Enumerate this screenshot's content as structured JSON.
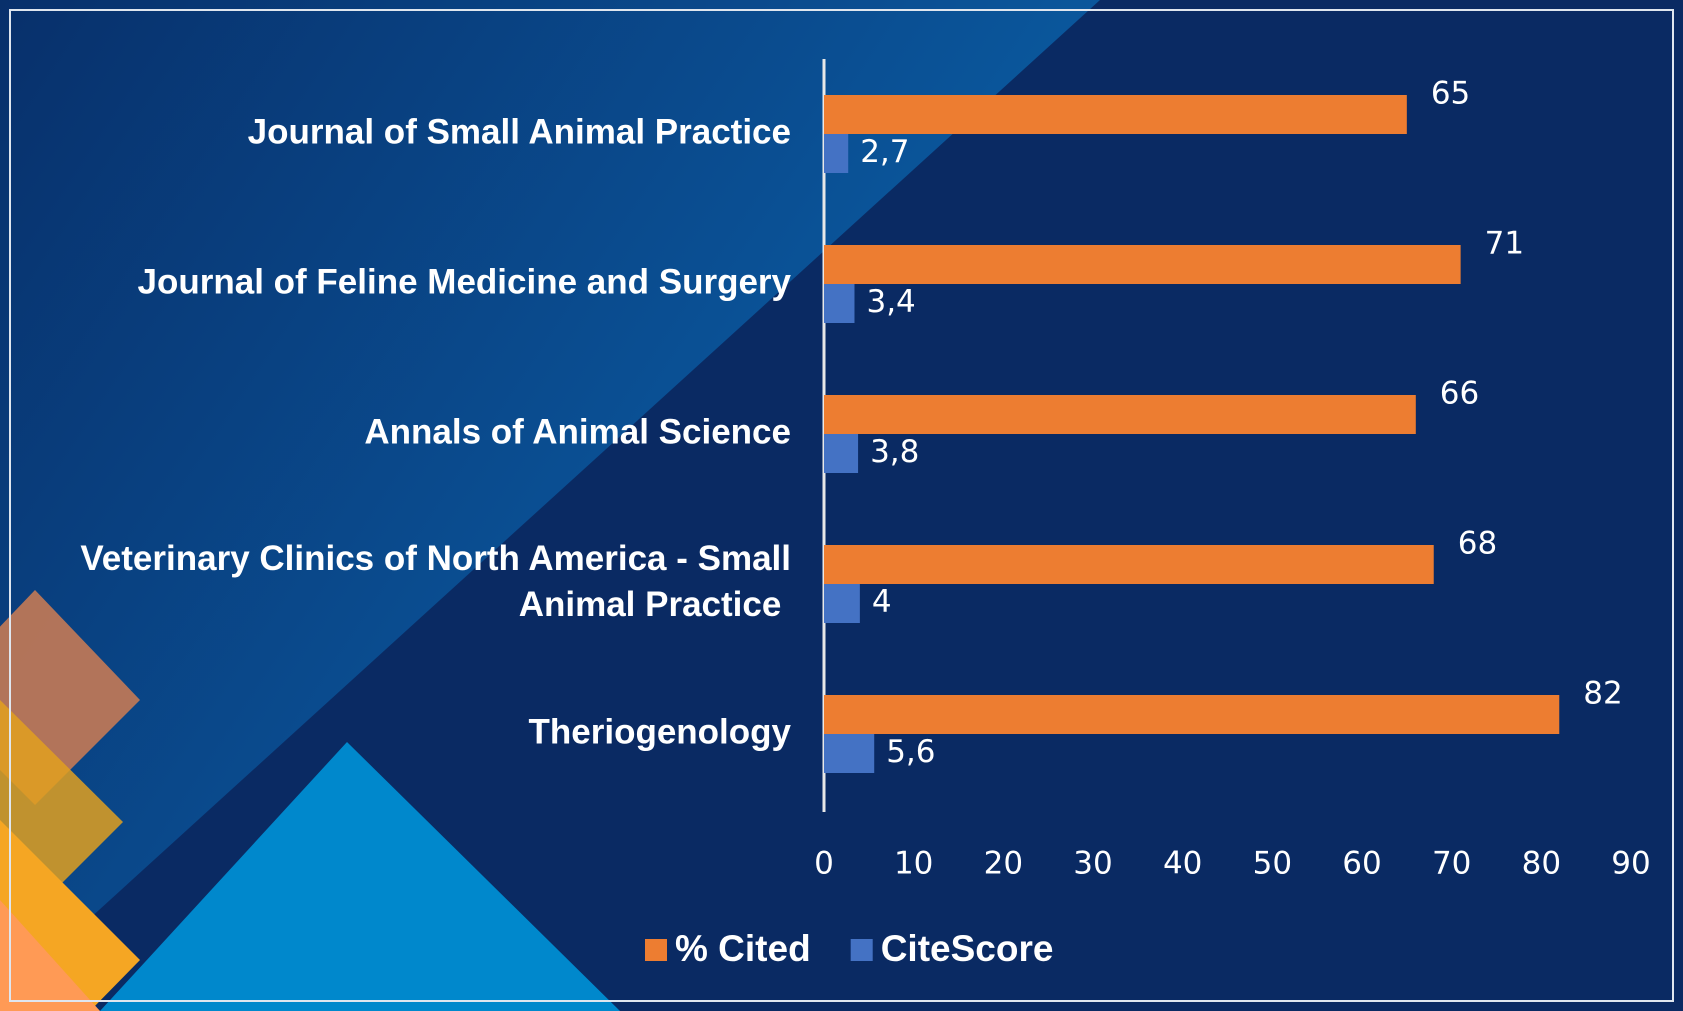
{
  "chart_data": {
    "type": "bar",
    "orientation": "horizontal",
    "categories": [
      "Journal of Small Animal Practice",
      "Journal of Feline Medicine and Surgery",
      "Annals of Animal Science",
      "Veterinary Clinics of North America - Small Animal Practice",
      "Theriogenology"
    ],
    "series": [
      {
        "name": "% Cited",
        "color": "#ed7d31",
        "values": [
          65,
          71,
          66,
          68,
          82
        ]
      },
      {
        "name": "CiteScore",
        "color": "#4472c4",
        "values": [
          2.7,
          3.4,
          3.8,
          4,
          5.6
        ],
        "value_labels": [
          "2,7",
          "3,4",
          "3,8",
          "4",
          "5,6"
        ]
      }
    ],
    "xlim": [
      0,
      90
    ],
    "xticks": [
      0,
      10,
      20,
      30,
      40,
      50,
      60,
      70,
      80,
      90
    ],
    "grid": false,
    "legend": "bottom"
  }
}
